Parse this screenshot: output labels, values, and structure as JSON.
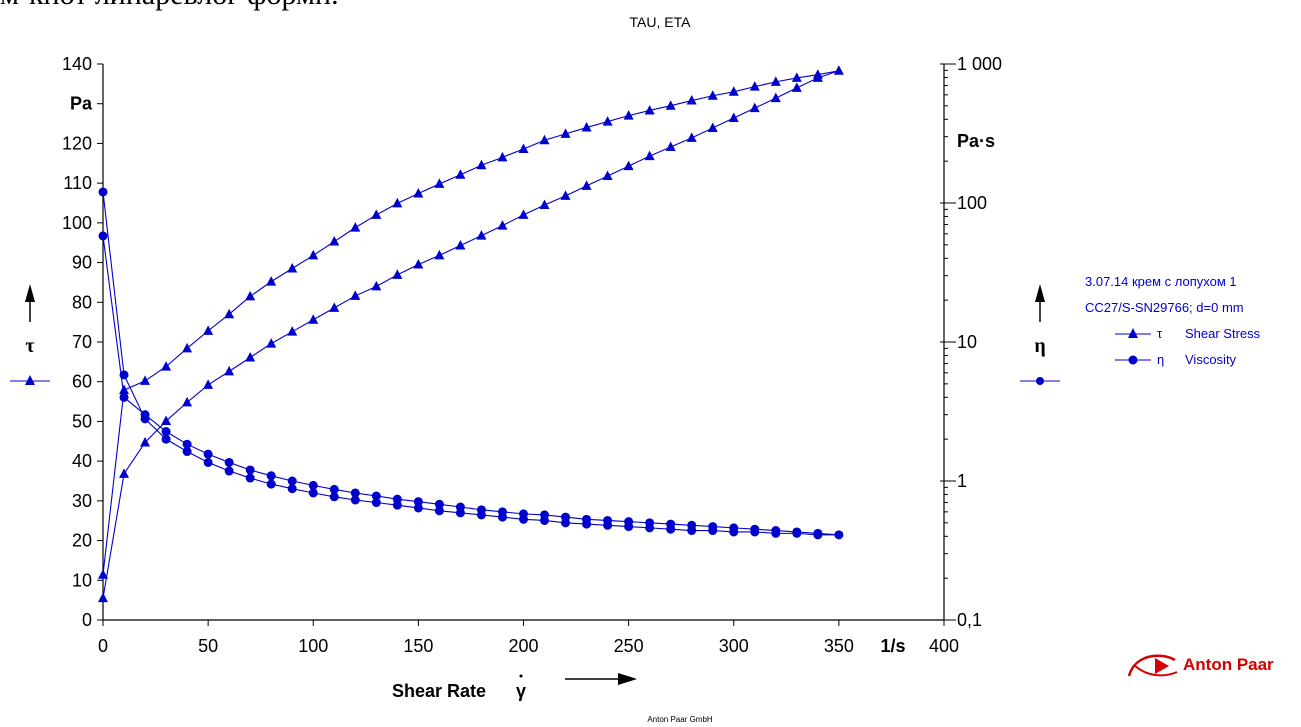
{
  "header_text": "м-кнот линаревлог формп.",
  "chart_title": "TAU, ETA",
  "footer": "Anton Paar GmbH",
  "logo": {
    "text": "Anton Paar",
    "color": "#d40000"
  },
  "legend": {
    "sample": "3.07.14 крем с лопухом 1",
    "measuring_system": "CC27/S-SN29766; d=0 mm",
    "items": [
      {
        "greek": "τ",
        "label": "Shear Stress",
        "marker": "triangle"
      },
      {
        "greek": "η",
        "label": "Viscosity",
        "marker": "circle"
      }
    ]
  },
  "colors": {
    "series": "#0000cc",
    "axis": "#000000",
    "grid": "#000000"
  },
  "chart_data": {
    "type": "line",
    "title": "TAU, ETA",
    "xlabel": "Shear Rate",
    "xlabel_symbol": "γ",
    "xunit": "1/s",
    "xlim": [
      0,
      400
    ],
    "xticks": [
      0,
      50,
      100,
      150,
      200,
      250,
      300,
      350,
      400
    ],
    "xtick_labels": [
      "0",
      "50",
      "100",
      "150",
      "200",
      "250",
      "300",
      "350",
      "400"
    ],
    "y_left": {
      "symbol": "τ",
      "unit": "Pa",
      "lim": [
        0,
        140
      ],
      "scale": "linear",
      "ticks": [
        0,
        10,
        20,
        30,
        40,
        50,
        60,
        70,
        80,
        90,
        100,
        110,
        120,
        130,
        140
      ],
      "tick_labels": [
        "0",
        "10",
        "20",
        "30",
        "40",
        "50",
        "60",
        "70",
        "80",
        "90",
        "100",
        "110",
        "120",
        "130",
        "140"
      ]
    },
    "y_right": {
      "symbol": "η",
      "unit": "Pa·s",
      "lim": [
        0.1,
        1000
      ],
      "scale": "log",
      "ticks": [
        0.1,
        1,
        10,
        100,
        1000
      ],
      "tick_labels": [
        "0,1",
        "1",
        "10",
        "100",
        "1 000"
      ]
    },
    "grid": false,
    "legend_position": "right",
    "series": [
      {
        "name": "Shear Stress",
        "axis": "left",
        "marker": "triangle",
        "x": [
          0,
          10,
          20,
          30,
          40,
          50,
          60,
          70,
          80,
          90,
          100,
          110,
          120,
          130,
          140,
          150,
          160,
          170,
          180,
          190,
          200,
          210,
          220,
          230,
          240,
          250,
          260,
          270,
          280,
          290,
          300,
          310,
          320,
          330,
          340,
          350,
          340,
          330,
          320,
          310,
          300,
          290,
          280,
          270,
          260,
          250,
          240,
          230,
          220,
          210,
          200,
          190,
          180,
          170,
          160,
          150,
          140,
          130,
          120,
          110,
          100,
          90,
          80,
          70,
          60,
          50,
          40,
          30,
          20,
          10,
          0
        ],
        "values": [
          5.5,
          36.8,
          44.7,
          50.1,
          54.8,
          59.2,
          62.6,
          66.1,
          69.6,
          72.6,
          75.6,
          78.6,
          81.6,
          84.0,
          86.9,
          89.5,
          91.8,
          94.3,
          96.8,
          99.3,
          102.0,
          104.5,
          106.8,
          109.3,
          111.8,
          114.3,
          116.8,
          119.1,
          121.4,
          123.9,
          126.4,
          128.9,
          131.4,
          134.0,
          136.5,
          138.3,
          137.3,
          136.5,
          135.5,
          134.3,
          133.0,
          132.0,
          130.8,
          129.5,
          128.3,
          127.0,
          125.5,
          124.0,
          122.4,
          120.8,
          118.6,
          116.5,
          114.5,
          112.1,
          109.8,
          107.4,
          104.9,
          102.0,
          98.8,
          95.3,
          91.8,
          88.5,
          85.2,
          81.5,
          77.0,
          72.8,
          68.4,
          63.8,
          60.2,
          57.9,
          11.4
        ]
      },
      {
        "name": "Viscosity",
        "axis": "right",
        "marker": "circle",
        "x": [
          0,
          10,
          20,
          30,
          40,
          50,
          60,
          70,
          80,
          90,
          100,
          110,
          120,
          130,
          140,
          150,
          160,
          170,
          180,
          190,
          200,
          210,
          220,
          230,
          240,
          250,
          260,
          270,
          280,
          290,
          300,
          310,
          320,
          330,
          340,
          350,
          340,
          330,
          320,
          310,
          300,
          290,
          280,
          270,
          260,
          250,
          240,
          230,
          220,
          210,
          200,
          190,
          180,
          170,
          160,
          150,
          140,
          130,
          120,
          110,
          100,
          90,
          80,
          70,
          60,
          50,
          40,
          30,
          20,
          10,
          0
        ],
        "values": [
          120,
          5.8,
          2.8,
          2.0,
          1.63,
          1.36,
          1.18,
          1.05,
          0.95,
          0.88,
          0.82,
          0.77,
          0.73,
          0.7,
          0.67,
          0.64,
          0.61,
          0.59,
          0.57,
          0.55,
          0.53,
          0.52,
          0.5,
          0.49,
          0.48,
          0.47,
          0.46,
          0.45,
          0.44,
          0.44,
          0.43,
          0.43,
          0.42,
          0.42,
          0.41,
          0.41,
          0.42,
          0.43,
          0.44,
          0.45,
          0.46,
          0.47,
          0.48,
          0.49,
          0.5,
          0.51,
          0.52,
          0.53,
          0.55,
          0.57,
          0.58,
          0.6,
          0.62,
          0.65,
          0.68,
          0.71,
          0.74,
          0.78,
          0.82,
          0.87,
          0.93,
          1.0,
          1.09,
          1.2,
          1.36,
          1.56,
          1.84,
          2.27,
          3.0,
          4.0,
          58
        ]
      }
    ]
  }
}
